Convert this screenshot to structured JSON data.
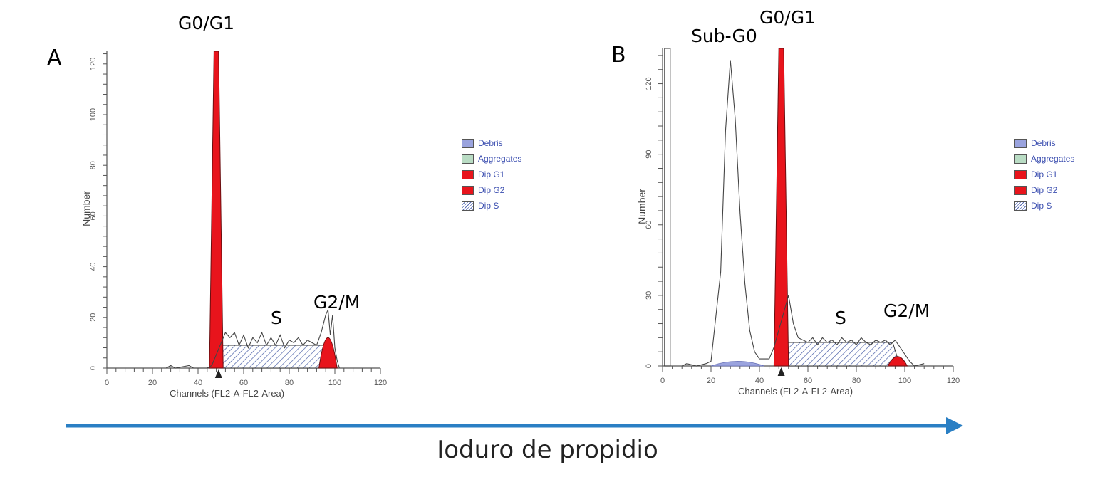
{
  "panels": [
    {
      "letter": "A",
      "labels": {
        "g0g1": "G0/G1",
        "s": "S",
        "g2m": "G2/M"
      },
      "ylabel": "Number",
      "xlabel": "Channels   (FL2-A-FL2-Area)",
      "legend": [
        {
          "label": "Debris",
          "color": "#9aa3de"
        },
        {
          "label": "Aggregates",
          "color": "#b9dcc4"
        },
        {
          "label": "Dip G1",
          "color": "#e8141c"
        },
        {
          "label": "Dip G2",
          "color": "#e8141c"
        },
        {
          "label": "Dip S",
          "color": "hatched"
        }
      ]
    },
    {
      "letter": "B",
      "labels": {
        "subg0": "Sub-G0",
        "g0g1": "G0/G1",
        "s": "S",
        "g2m": "G2/M"
      },
      "ylabel": "Number",
      "xlabel": "Channels   (FL2-A-FL2-Area)",
      "legend": [
        {
          "label": "Debris",
          "color": "#9aa3de"
        },
        {
          "label": "Aggregates",
          "color": "#b9dcc4"
        },
        {
          "label": "Dip G1",
          "color": "#e8141c"
        },
        {
          "label": "Dip G2",
          "color": "#e8141c"
        },
        {
          "label": "Dip S",
          "color": "hatched"
        }
      ]
    }
  ],
  "chart_data": [
    {
      "type": "area",
      "title": "A",
      "xlabel": "Channels (FL2-A-FL2-Area)",
      "ylabel": "Number",
      "xlim": [
        0,
        120
      ],
      "ylim": [
        0,
        125
      ],
      "xticks": [
        0,
        20,
        40,
        60,
        80,
        100,
        120
      ],
      "yticks": [
        0,
        20,
        40,
        60,
        80,
        100,
        120
      ],
      "g1_peak": {
        "channel": 48,
        "height": 125,
        "width": 4
      },
      "g2_peak": {
        "channel": 97,
        "height": 12,
        "width": 3
      },
      "s_phase": {
        "from": 50,
        "to": 95,
        "height": 9
      },
      "histogram": [
        [
          26,
          0
        ],
        [
          28,
          1
        ],
        [
          30,
          0
        ],
        [
          36,
          1
        ],
        [
          38,
          0
        ],
        [
          44,
          0
        ],
        [
          46,
          1
        ],
        [
          52,
          14
        ],
        [
          54,
          12
        ],
        [
          56,
          14
        ],
        [
          58,
          9
        ],
        [
          60,
          13
        ],
        [
          62,
          8
        ],
        [
          64,
          12
        ],
        [
          66,
          10
        ],
        [
          68,
          14
        ],
        [
          70,
          9
        ],
        [
          72,
          12
        ],
        [
          74,
          9
        ],
        [
          76,
          13
        ],
        [
          78,
          8
        ],
        [
          80,
          11
        ],
        [
          82,
          10
        ],
        [
          84,
          12
        ],
        [
          86,
          9
        ],
        [
          88,
          11
        ],
        [
          90,
          10
        ],
        [
          92,
          9
        ],
        [
          94,
          14
        ],
        [
          96,
          21
        ],
        [
          97,
          23
        ],
        [
          98,
          13
        ],
        [
          99,
          21
        ],
        [
          100,
          8
        ],
        [
          101,
          3
        ],
        [
          102,
          0
        ]
      ],
      "marker_channel": 49
    },
    {
      "type": "area",
      "title": "B",
      "xlabel": "Channels (FL2-A-FL2-Area)",
      "ylabel": "Number",
      "xlim": [
        0,
        120
      ],
      "ylim": [
        0,
        135
      ],
      "xticks": [
        0,
        20,
        40,
        60,
        80,
        100,
        120
      ],
      "yticks": [
        0,
        30,
        60,
        90,
        120
      ],
      "subg0_peak": {
        "channel": 28,
        "height": 135,
        "width": 4
      },
      "g1_peak": {
        "channel": 49,
        "height": 135,
        "width": 4
      },
      "g2_peak": {
        "channel": 97,
        "height": 4,
        "width": 3
      },
      "s_phase": {
        "from": 51,
        "to": 95,
        "height": 10
      },
      "debris": {
        "from": 20,
        "to": 42,
        "height": 2
      },
      "histogram": [
        [
          8,
          0
        ],
        [
          10,
          1
        ],
        [
          14,
          0
        ],
        [
          18,
          1
        ],
        [
          20,
          2
        ],
        [
          24,
          40
        ],
        [
          26,
          100
        ],
        [
          28,
          130
        ],
        [
          30,
          105
        ],
        [
          32,
          65
        ],
        [
          34,
          35
        ],
        [
          36,
          15
        ],
        [
          38,
          6
        ],
        [
          40,
          3
        ],
        [
          44,
          3
        ],
        [
          46,
          8
        ],
        [
          52,
          30
        ],
        [
          54,
          18
        ],
        [
          56,
          12
        ],
        [
          58,
          11
        ],
        [
          60,
          10
        ],
        [
          62,
          12
        ],
        [
          64,
          9
        ],
        [
          66,
          12
        ],
        [
          68,
          10
        ],
        [
          70,
          11
        ],
        [
          72,
          9
        ],
        [
          74,
          12
        ],
        [
          76,
          10
        ],
        [
          78,
          11
        ],
        [
          80,
          9
        ],
        [
          82,
          12
        ],
        [
          84,
          10
        ],
        [
          86,
          9
        ],
        [
          88,
          11
        ],
        [
          90,
          10
        ],
        [
          92,
          11
        ],
        [
          94,
          9
        ],
        [
          96,
          11
        ],
        [
          98,
          8
        ],
        [
          100,
          5
        ],
        [
          102,
          2
        ],
        [
          104,
          0
        ],
        [
          108,
          1
        ]
      ],
      "left_edge_event": {
        "channel": 2,
        "height": 135
      },
      "marker_channel": 49
    }
  ],
  "arrow": {
    "color": "#2a7fc4"
  },
  "caption": "Ioduro de propidio"
}
